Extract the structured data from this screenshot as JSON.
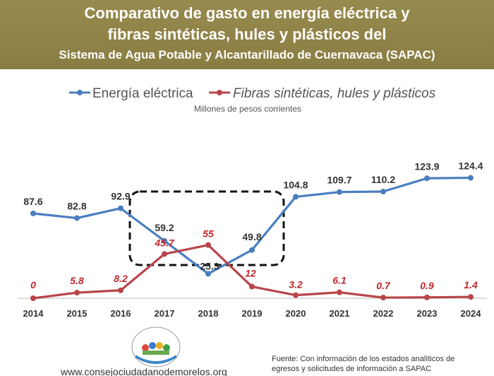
{
  "header": {
    "title_line1": "Comparativo de gasto en energía eléctrica y",
    "title_line2": "fibras sintéticas, hules y plásticos del",
    "title_line3": "Sistema de Agua Potable y Alcantarillado de Cuernavaca (SAPAC)"
  },
  "chart_data": {
    "type": "line",
    "subtitle": "Millones de pesos corrientes",
    "categories": [
      "2014",
      "2015",
      "2016",
      "2017",
      "2018",
      "2019",
      "2020",
      "2021",
      "2022",
      "2023",
      "2024"
    ],
    "series": [
      {
        "name": "Energía eléctrica",
        "color": "#4a7ec0",
        "values": [
          87.6,
          82.8,
          92.9,
          59.2,
          25.3,
          49.8,
          104.8,
          109.7,
          110.2,
          123.9,
          124.4
        ],
        "labels": [
          "87.6",
          "82.8",
          "92.9",
          "59.2",
          "25.3",
          "49.8",
          "104.8",
          "109.7",
          "110.2",
          "123.9",
          "124.4"
        ]
      },
      {
        "name": "Fibras sintéticas, hules y plásticos",
        "color": "#b8454a",
        "values": [
          0,
          5.8,
          8.2,
          45.7,
          55,
          12,
          3.2,
          6.1,
          0.7,
          0.9,
          1.4
        ],
        "labels": [
          "0",
          "5.8",
          "8.2",
          "45.7",
          "55",
          "12",
          "3.2",
          "6.1",
          "0.7",
          "0.9",
          "1.4"
        ]
      }
    ],
    "ylim": [
      0,
      135
    ],
    "grid": false,
    "legend": "top",
    "annotation": "dashed-box-2017-2019"
  },
  "footer": {
    "website": "www.consejociudadanodemorelos.org",
    "source_line1": "Fuente: Con información de los estados analíticos de",
    "source_line2": "egresos y solicitudes de información a SAPAC",
    "logo_caption": "Consejo Ciudadano de Morelos"
  }
}
